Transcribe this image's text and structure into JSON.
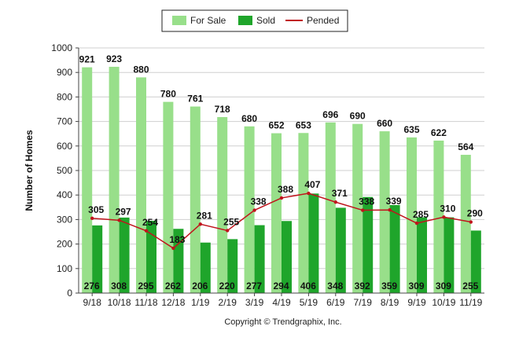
{
  "chart_data": {
    "type": "bar",
    "ylabel": "Number of Homes",
    "ylim": [
      0,
      1000
    ],
    "yticks": [
      0,
      100,
      200,
      300,
      400,
      500,
      600,
      700,
      800,
      900,
      1000
    ],
    "categories": [
      "9/18",
      "10/18",
      "11/18",
      "12/18",
      "1/19",
      "2/19",
      "3/19",
      "4/19",
      "5/19",
      "6/19",
      "7/19",
      "8/19",
      "9/19",
      "10/19",
      "11/19"
    ],
    "series": [
      {
        "name": "For Sale",
        "kind": "bar",
        "color": "#98df8a",
        "values": [
          921,
          923,
          880,
          780,
          761,
          718,
          680,
          652,
          653,
          696,
          690,
          660,
          635,
          622,
          564
        ]
      },
      {
        "name": "Sold",
        "kind": "bar",
        "color": "#1fa52b",
        "values": [
          276,
          308,
          295,
          262,
          206,
          220,
          277,
          294,
          406,
          348,
          392,
          359,
          309,
          309,
          255
        ]
      },
      {
        "name": "Pended",
        "kind": "line",
        "color": "#c0141c",
        "values": [
          305,
          297,
          254,
          183,
          281,
          255,
          338,
          388,
          407,
          371,
          338,
          339,
          285,
          310,
          290
        ]
      }
    ],
    "grid": true,
    "legend_position": "top-center",
    "footer": "Copyright © Trendgraphix, Inc."
  }
}
